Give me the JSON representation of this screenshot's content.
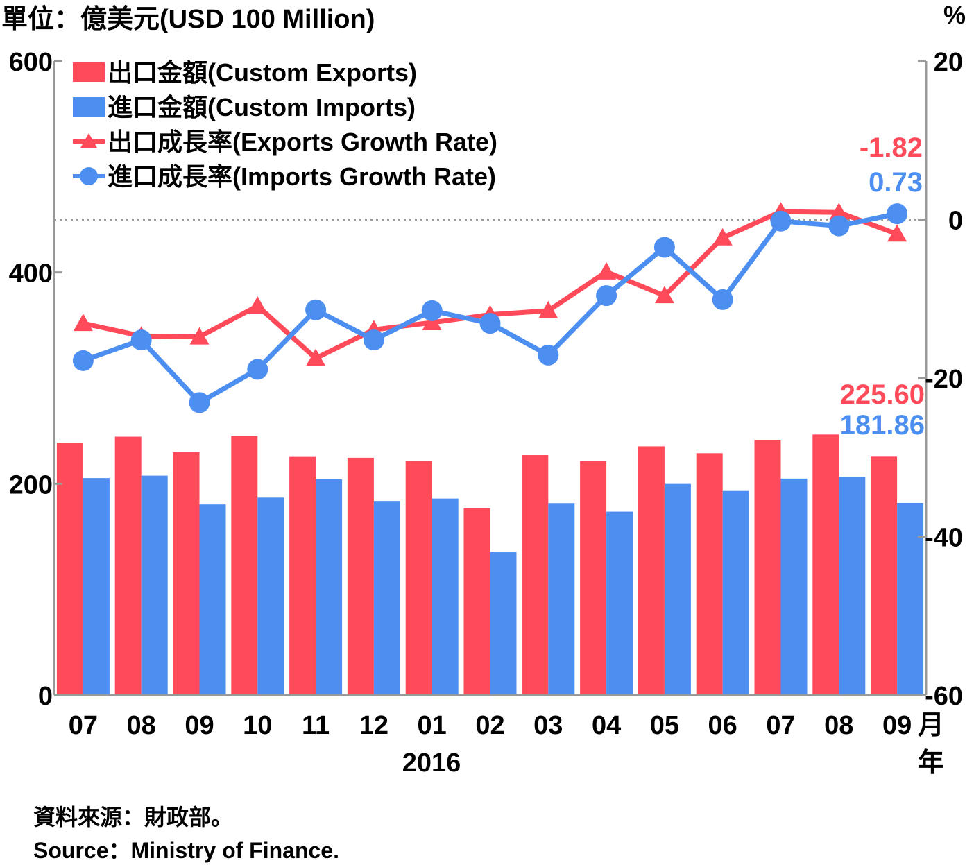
{
  "chart_data": {
    "type": "bar",
    "unit_left": "單位：億美元(USD 100 Million)",
    "unit_right": "%",
    "categories": [
      "07",
      "08",
      "09",
      "10",
      "11",
      "12",
      "01",
      "02",
      "03",
      "04",
      "05",
      "06",
      "07",
      "08",
      "09"
    ],
    "x_suffix": "月",
    "year_label": "2016",
    "year_suffix": "年",
    "left_axis": {
      "min": 0,
      "max": 600,
      "ticks": [
        0,
        200,
        400,
        600
      ]
    },
    "right_axis": {
      "min": -60,
      "max": 20,
      "ticks": [
        20,
        0,
        -20,
        -40,
        -60
      ]
    },
    "series": [
      {
        "name": "出口金額(Custom Exports)",
        "kind": "bar",
        "axis": "left",
        "color": "#ff4a5a",
        "values": [
          238.9,
          244.5,
          229.8,
          245.1,
          225.4,
          224.6,
          221.7,
          176.8,
          227.1,
          221.4,
          235.4,
          228.9,
          241.4,
          246.6,
          225.6
        ]
      },
      {
        "name": "進口金額(Custom Imports)",
        "kind": "bar",
        "axis": "left",
        "color": "#4d8ff0",
        "values": [
          205.4,
          207.7,
          180.4,
          186.9,
          204.2,
          183.7,
          186.0,
          135.2,
          181.7,
          173.6,
          199.8,
          193.2,
          204.9,
          206.5,
          181.86
        ]
      },
      {
        "name": "出口成長率(Exports Growth Rate)",
        "kind": "line",
        "marker": "triangle",
        "axis": "right",
        "color": "#ff4a5a",
        "values": [
          -13.1,
          -14.7,
          -14.8,
          -10.9,
          -17.5,
          -13.9,
          -13.0,
          -12.0,
          -11.5,
          -6.6,
          -9.6,
          -2.3,
          1.0,
          0.9,
          -1.82
        ]
      },
      {
        "name": "進口成長率(Imports Growth Rate)",
        "kind": "line",
        "marker": "circle",
        "axis": "right",
        "color": "#4d8ff0",
        "values": [
          -17.8,
          -15.2,
          -23.1,
          -18.9,
          -11.4,
          -15.2,
          -11.5,
          -13.1,
          -17.1,
          -9.6,
          -3.5,
          -10.1,
          -0.2,
          -0.8,
          0.73
        ]
      }
    ],
    "annotations": {
      "exports_growth_last": "-1.82",
      "imports_growth_last": "0.73",
      "exports_last": "225.60",
      "imports_last": "181.86"
    },
    "reference_line": {
      "axis": "right",
      "value": 0,
      "style": "dotted"
    },
    "legend_position": "top-left",
    "grid": false
  },
  "source": {
    "zh": "資料來源：財政部。",
    "en": "Source：Ministry of Finance."
  },
  "colors": {
    "exports": "#ff4a5a",
    "imports": "#4d8ff0",
    "axis": "#999999"
  }
}
